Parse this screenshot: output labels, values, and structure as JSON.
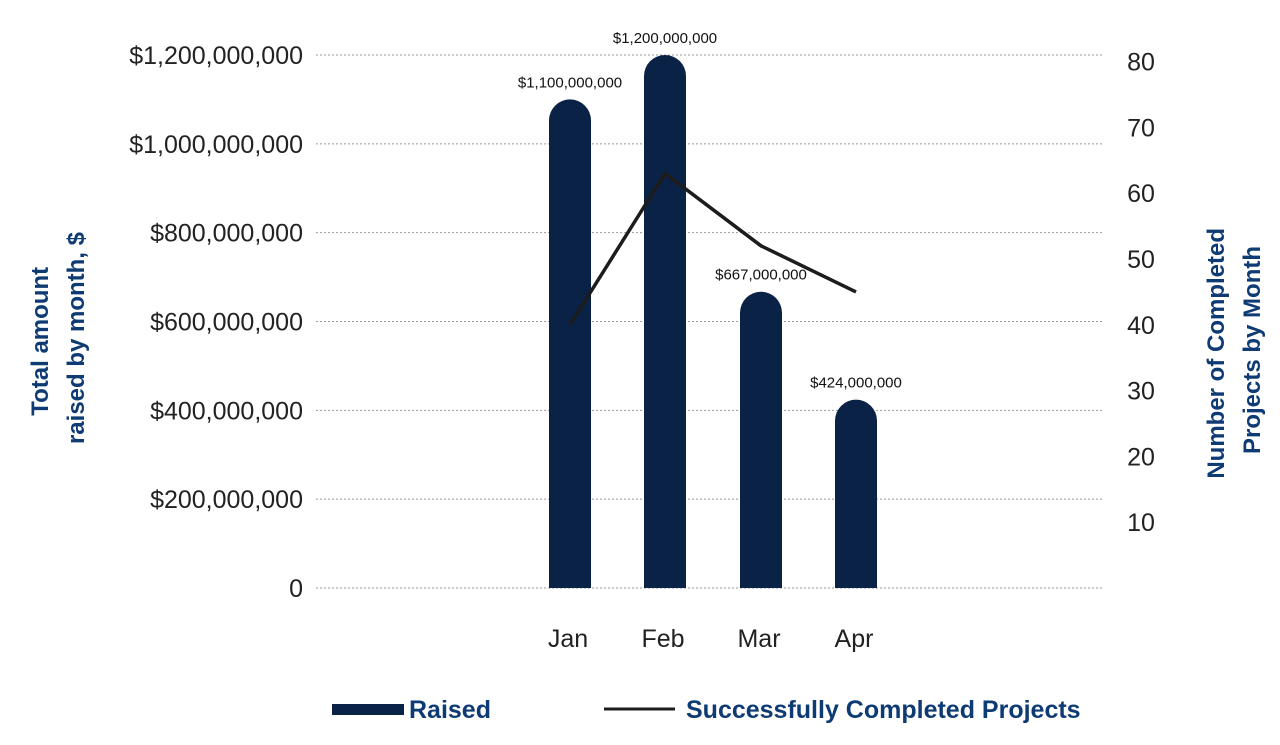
{
  "colors": {
    "bar": "#0b2247",
    "line": "#1c1c1c",
    "title_text": "#0e3b73"
  },
  "chart_data": {
    "type": "bar",
    "categories": [
      "Jan",
      "Feb",
      "Mar",
      "Apr"
    ],
    "series": [
      {
        "name": "Raised",
        "type": "bar",
        "axis": "left",
        "values": [
          1100000000,
          1200000000,
          667000000,
          424000000
        ],
        "labels": [
          "$1,100,000,000",
          "$1,200,000,000",
          "$667,000,000",
          "$424,000,000"
        ]
      },
      {
        "name": "Successfully Completed Projects",
        "type": "line",
        "axis": "right",
        "values": [
          40,
          63,
          52,
          45
        ]
      }
    ],
    "y_left": {
      "label_lines": [
        "Total amount",
        "raised by month, $"
      ],
      "ylim": [
        0,
        1200000000
      ],
      "ticks": [
        0,
        200000000,
        400000000,
        600000000,
        800000000,
        1000000000,
        1200000000
      ],
      "tick_labels": [
        "0",
        "$200,000,000",
        "$400,000,000",
        "$600,000,000",
        "$800,000,000",
        "$1,000,000,000",
        "$1,200,000,000"
      ]
    },
    "y_right": {
      "label_lines": [
        "Number of Completed",
        "Projects by Month"
      ],
      "ylim": [
        0,
        81
      ],
      "ticks": [
        10,
        20,
        30,
        40,
        50,
        60,
        70,
        80
      ],
      "tick_labels": [
        "10",
        "20",
        "30",
        "40",
        "50",
        "60",
        "70",
        "80"
      ]
    },
    "grid": true,
    "legend": {
      "position": "bottom",
      "items": [
        "Raised",
        "Successfully Completed Projects"
      ]
    }
  }
}
